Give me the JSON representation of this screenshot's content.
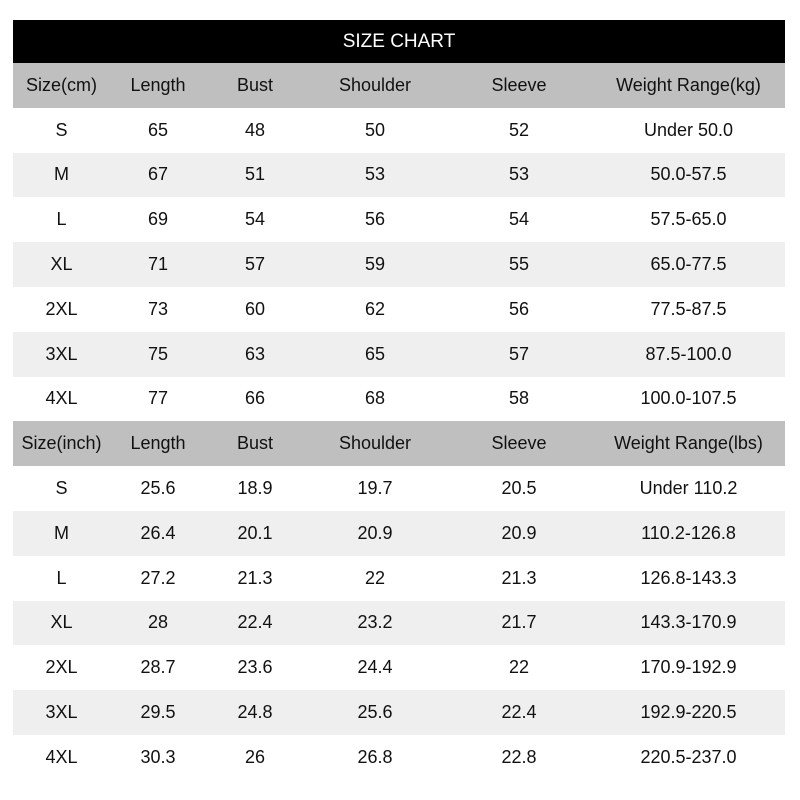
{
  "title": "SIZE CHART",
  "tables": [
    {
      "header": [
        "Size(cm)",
        "Length",
        "Bust",
        "Shoulder",
        "Sleeve",
        "Weight Range(kg)"
      ],
      "rows": [
        [
          "S",
          "65",
          "48",
          "50",
          "52",
          "Under 50.0"
        ],
        [
          "M",
          "67",
          "51",
          "53",
          "53",
          "50.0-57.5"
        ],
        [
          "L",
          "69",
          "54",
          "56",
          "54",
          "57.5-65.0"
        ],
        [
          "XL",
          "71",
          "57",
          "59",
          "55",
          "65.0-77.5"
        ],
        [
          "2XL",
          "73",
          "60",
          "62",
          "56",
          "77.5-87.5"
        ],
        [
          "3XL",
          "75",
          "63",
          "65",
          "57",
          "87.5-100.0"
        ],
        [
          "4XL",
          "77",
          "66",
          "68",
          "58",
          "100.0-107.5"
        ]
      ]
    },
    {
      "header": [
        "Size(inch)",
        "Length",
        "Bust",
        "Shoulder",
        "Sleeve",
        "Weight Range(lbs)"
      ],
      "rows": [
        [
          "S",
          "25.6",
          "18.9",
          "19.7",
          "20.5",
          "Under 110.2"
        ],
        [
          "M",
          "26.4",
          "20.1",
          "20.9",
          "20.9",
          "110.2-126.8"
        ],
        [
          "L",
          "27.2",
          "21.3",
          "22",
          "21.3",
          "126.8-143.3"
        ],
        [
          "XL",
          "28",
          "22.4",
          "23.2",
          "21.7",
          "143.3-170.9"
        ],
        [
          "2XL",
          "28.7",
          "23.6",
          "24.4",
          "22",
          "170.9-192.9"
        ],
        [
          "3XL",
          "29.5",
          "24.8",
          "25.6",
          "22.4",
          "192.9-220.5"
        ],
        [
          "4XL",
          "30.3",
          "26",
          "26.8",
          "22.8",
          "220.5-237.0"
        ]
      ]
    }
  ]
}
